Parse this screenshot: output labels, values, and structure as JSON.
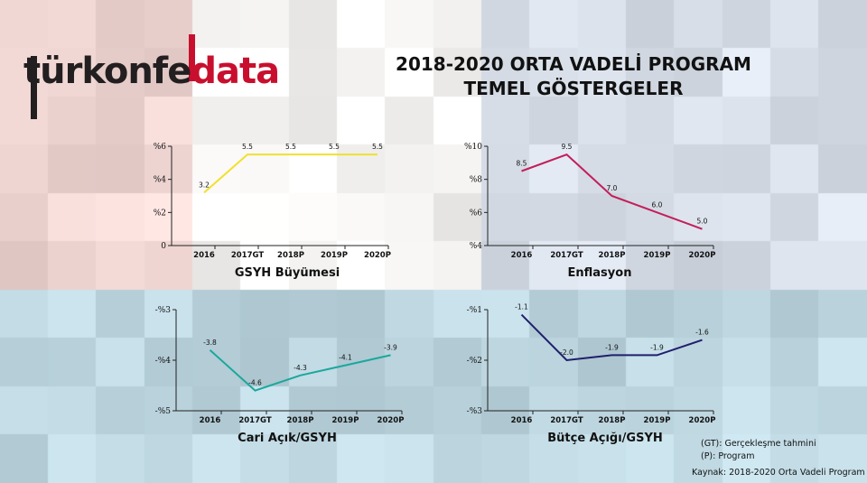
{
  "brand": {
    "part1": "türkonfe",
    "part2": "data"
  },
  "title": {
    "line1": "2018-2020 ORTA VADELİ PROGRAM",
    "line2": "TEMEL GÖSTERGELER"
  },
  "colors": {
    "brand_red": "#c8102e",
    "brand_dark": "#231f20"
  },
  "chart_data": [
    {
      "type": "line",
      "title": "GSYH Büyümesi",
      "categories": [
        "2016",
        "2017GT",
        "2018P",
        "2019P",
        "2020P"
      ],
      "values": [
        3.2,
        5.5,
        5.5,
        5.5,
        5.5
      ],
      "labels": [
        "3.2",
        "5.5",
        "5.5",
        "5.5",
        "5.5"
      ],
      "ylim": [
        0,
        6
      ],
      "yticks": [
        0,
        2,
        4,
        6
      ],
      "ytick_labels": [
        "0",
        "%2",
        "%4",
        "%6"
      ],
      "color": "#f0e130"
    },
    {
      "type": "line",
      "title": "Enflasyon",
      "categories": [
        "2016",
        "2017GT",
        "2018P",
        "2019P",
        "2020P"
      ],
      "values": [
        8.5,
        9.5,
        7.0,
        6.0,
        5.0
      ],
      "labels": [
        "8.5",
        "9.5",
        "7.0",
        "6.0",
        "5.0"
      ],
      "ylim": [
        4,
        10
      ],
      "yticks": [
        4,
        6,
        8,
        10
      ],
      "ytick_labels": [
        "%4",
        "%6",
        "%8",
        "%10"
      ],
      "color": "#c41e5a"
    },
    {
      "type": "line",
      "title": "Cari Açık/GSYH",
      "categories": [
        "2016",
        "2017GT",
        "2018P",
        "2019P",
        "2020P"
      ],
      "values": [
        -3.8,
        -4.6,
        -4.3,
        -4.1,
        -3.9
      ],
      "labels": [
        "-3.8",
        "-4.6",
        "-4.3",
        "-4.1",
        "-3.9"
      ],
      "ylim": [
        -5,
        -3
      ],
      "yticks": [
        -5,
        -4,
        -3
      ],
      "ytick_labels": [
        "-%5",
        "-%4",
        "-%3"
      ],
      "color": "#1aa89c"
    },
    {
      "type": "line",
      "title": "Bütçe Açığı/GSYH",
      "categories": [
        "2016",
        "2017GT",
        "2018P",
        "2019P",
        "2020P"
      ],
      "values": [
        -1.1,
        -2.0,
        -1.9,
        -1.9,
        -1.6
      ],
      "labels": [
        "-1.1",
        "-2.0",
        "-1.9",
        "-1.9",
        "-1.6"
      ],
      "ylim": [
        -3,
        -1
      ],
      "yticks": [
        -3,
        -2,
        -1
      ],
      "ytick_labels": [
        "-%3",
        "-%2",
        "-%1"
      ],
      "color": "#1f1f6b"
    }
  ],
  "notes": {
    "gt": "(GT): Gerçekleşme tahmini",
    "p": "(P): Program",
    "source": "Kaynak: 2018-2020 Orta Vadeli Program"
  }
}
